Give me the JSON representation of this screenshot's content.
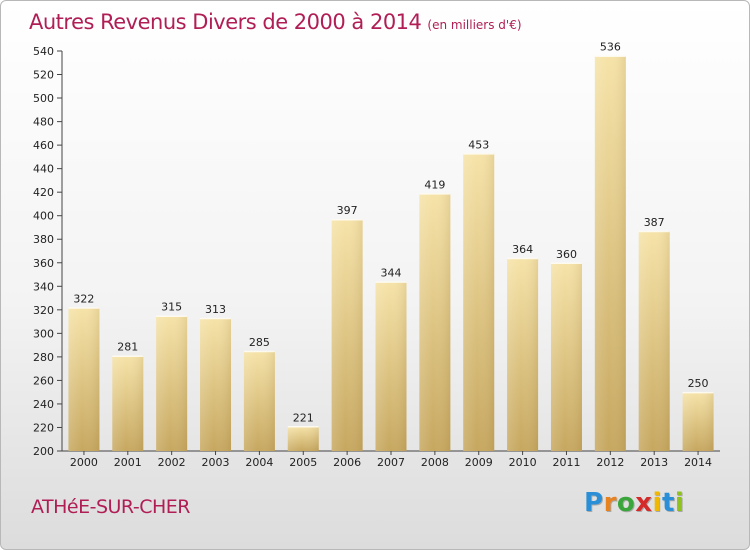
{
  "title": "Autres Revenus Divers de 2000 à 2014",
  "subtitle": "(en milliers d'€)",
  "place": "ATHéE-SUR-CHER",
  "logo": {
    "letters": [
      "P",
      "r",
      "o",
      "x",
      "i",
      "t",
      "i"
    ],
    "colors": [
      "#2a8fd6",
      "#e8821e",
      "#3aa53a",
      "#d42a2a",
      "#f0b800",
      "#2a8fd6",
      "#8fc21f"
    ]
  },
  "colors": {
    "title": "#b01e55",
    "bar_light": "#f6e3a8",
    "bar_dark": "#c6a75f"
  },
  "chart_data": {
    "type": "bar",
    "title": "Autres Revenus Divers de 2000 à 2014",
    "categories": [
      "2000",
      "2001",
      "2002",
      "2003",
      "2004",
      "2005",
      "2006",
      "2007",
      "2008",
      "2009",
      "2010",
      "2011",
      "2012",
      "2013",
      "2014"
    ],
    "values": [
      322,
      281,
      315,
      313,
      285,
      221,
      397,
      344,
      419,
      453,
      364,
      360,
      536,
      387,
      250
    ],
    "ylim": [
      200,
      540
    ],
    "ytick_step": 20,
    "grid": false,
    "data_labels": true,
    "legend": "none"
  }
}
